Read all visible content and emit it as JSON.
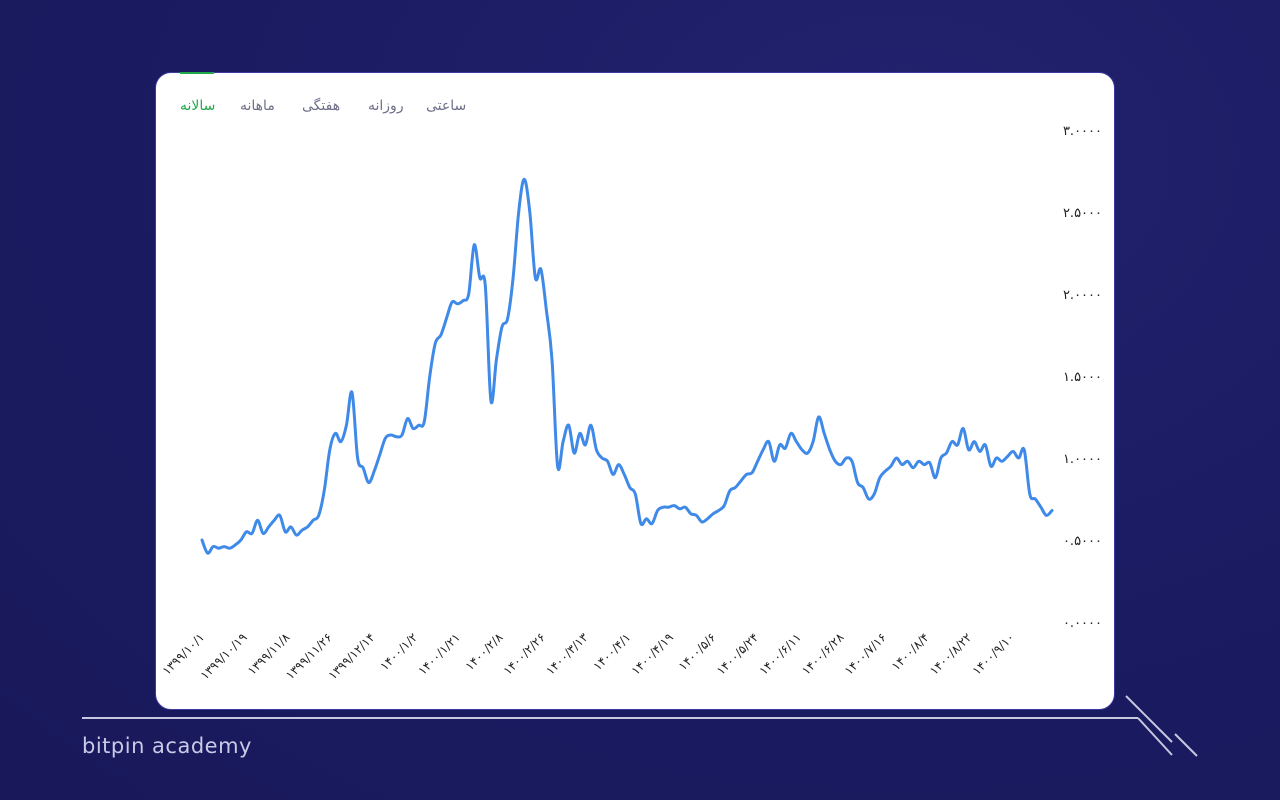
{
  "brand": {
    "text": "bitpin academy"
  },
  "tabs": [
    {
      "label": "سالانه",
      "active": true
    },
    {
      "label": "ماهانه",
      "active": false
    },
    {
      "label": "هفتگی",
      "active": false
    },
    {
      "label": "روزانه",
      "active": false
    },
    {
      "label": "ساعتی",
      "active": false
    }
  ],
  "colors": {
    "background": "#1b1b62",
    "line": "#3f8ae8",
    "active_tab": "#22a84a",
    "card": "#ffffff"
  },
  "chart_data": {
    "type": "line",
    "title": "",
    "xlabel": "",
    "ylabel": "",
    "ylim": [
      0,
      3
    ],
    "y_ticks": [
      {
        "value": 0,
        "label": "۰.۰۰۰۰"
      },
      {
        "value": 0.5,
        "label": "۰.۵۰۰۰"
      },
      {
        "value": 1,
        "label": "۱.۰۰۰۰"
      },
      {
        "value": 1.5,
        "label": "۱.۵۰۰۰"
      },
      {
        "value": 2,
        "label": "۲.۰۰۰۰"
      },
      {
        "value": 2.5,
        "label": "۲.۵۰۰۰"
      },
      {
        "value": 3,
        "label": "۳.۰۰۰۰"
      }
    ],
    "x_ticks": [
      "۱۳۹۹/۱۰/۱",
      "۱۳۹۹/۱۰/۱۹",
      "۱۳۹۹/۱۱/۸",
      "۱۳۹۹/۱۱/۲۶",
      "۱۳۹۹/۱۲/۱۴",
      "۱۴۰۰/۱/۲",
      "۱۴۰۰/۱/۲۱",
      "۱۴۰۰/۲/۸",
      "۱۴۰۰/۲/۲۶",
      "۱۴۰۰/۳/۱۳",
      "۱۴۰۰/۴/۱",
      "۱۴۰۰/۴/۱۹",
      "۱۴۰۰/۵/۶",
      "۱۴۰۰/۵/۲۴",
      "۱۴۰۰/۶/۱۱",
      "۱۴۰۰/۶/۲۸",
      "۱۴۰۰/۷/۱۶",
      "۱۴۰۰/۸/۴",
      "۱۴۰۰/۸/۲۲",
      "۱۴۰۰/۹/۱۰"
    ],
    "series": [
      {
        "values": [
          0.5,
          0.42,
          0.46,
          0.45,
          0.46,
          0.45,
          0.47,
          0.5,
          0.55,
          0.54,
          0.62,
          0.54,
          0.58,
          0.62,
          0.65,
          0.55,
          0.58,
          0.53,
          0.56,
          0.58,
          0.62,
          0.65,
          0.8,
          1.05,
          1.15,
          1.1,
          1.2,
          1.4,
          1.0,
          0.94,
          0.85,
          0.92,
          1.02,
          1.12,
          1.14,
          1.13,
          1.14,
          1.24,
          1.18,
          1.2,
          1.22,
          1.5,
          1.7,
          1.75,
          1.85,
          1.95,
          1.94,
          1.96,
          2.0,
          2.3,
          2.1,
          2.05,
          1.35,
          1.6,
          1.8,
          1.85,
          2.1,
          2.5,
          2.7,
          2.5,
          2.1,
          2.15,
          1.9,
          1.6,
          0.95,
          1.1,
          1.2,
          1.03,
          1.15,
          1.08,
          1.2,
          1.05,
          1.0,
          0.98,
          0.9,
          0.96,
          0.9,
          0.82,
          0.78,
          0.6,
          0.63,
          0.6,
          0.68,
          0.7,
          0.7,
          0.71,
          0.69,
          0.7,
          0.66,
          0.65,
          0.61,
          0.63,
          0.66,
          0.68,
          0.71,
          0.8,
          0.82,
          0.86,
          0.9,
          0.91,
          0.98,
          1.05,
          1.1,
          0.98,
          1.08,
          1.06,
          1.15,
          1.1,
          1.05,
          1.03,
          1.1,
          1.25,
          1.15,
          1.05,
          0.98,
          0.96,
          1.0,
          0.98,
          0.85,
          0.82,
          0.75,
          0.78,
          0.88,
          0.92,
          0.95,
          1.0,
          0.96,
          0.98,
          0.94,
          0.98,
          0.96,
          0.97,
          0.88,
          1.0,
          1.03,
          1.1,
          1.08,
          1.18,
          1.05,
          1.1,
          1.04,
          1.08,
          0.95,
          1.0,
          0.98,
          1.01,
          1.04,
          1.0,
          1.05,
          0.78,
          0.75,
          0.7,
          0.65,
          0.68
        ]
      }
    ],
    "grid": false,
    "legend": "none"
  }
}
